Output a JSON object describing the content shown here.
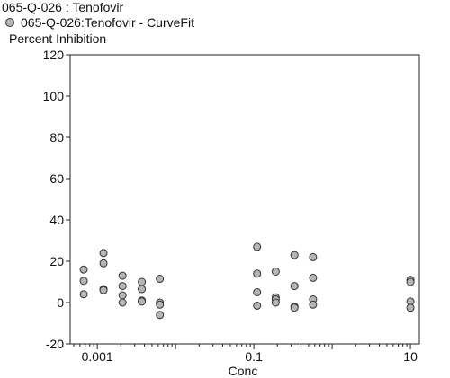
{
  "chart_data": {
    "type": "scatter",
    "title": "065-Q-026  : Tenofovir",
    "legend": [
      {
        "name": "065-Q-026:Tenofovir - CurveFit",
        "marker": "circle",
        "color": "#b5b5b5"
      }
    ],
    "ylabel": "Percent  Inhibition",
    "xlabel": "Conc",
    "x_scale": "log",
    "xlim": [
      0.00045,
      13
    ],
    "ylim": [
      -20,
      120
    ],
    "y_ticks": [
      -20,
      0,
      20,
      40,
      60,
      80,
      100,
      120
    ],
    "x_ticks": [
      {
        "value": 0.001,
        "label": "0.001"
      },
      {
        "value": 0.1,
        "label": "0.1"
      },
      {
        "value": 10,
        "label": "10"
      }
    ],
    "grid": false,
    "series": [
      {
        "name": "065-Q-026:Tenofovir - CurveFit",
        "color": "#b5b5b5",
        "points": [
          {
            "x": 0.00067,
            "y": 16
          },
          {
            "x": 0.00067,
            "y": 10.5
          },
          {
            "x": 0.00067,
            "y": 4
          },
          {
            "x": 0.0012,
            "y": 24
          },
          {
            "x": 0.0012,
            "y": 19
          },
          {
            "x": 0.0012,
            "y": 6.5
          },
          {
            "x": 0.0012,
            "y": 6
          },
          {
            "x": 0.0021,
            "y": 13
          },
          {
            "x": 0.0021,
            "y": 8
          },
          {
            "x": 0.0021,
            "y": 3.5
          },
          {
            "x": 0.0021,
            "y": 0
          },
          {
            "x": 0.0037,
            "y": 10
          },
          {
            "x": 0.0037,
            "y": 6.5
          },
          {
            "x": 0.0037,
            "y": 1
          },
          {
            "x": 0.0037,
            "y": 0.5
          },
          {
            "x": 0.0063,
            "y": 11.5
          },
          {
            "x": 0.0063,
            "y": 0
          },
          {
            "x": 0.0063,
            "y": -1
          },
          {
            "x": 0.0063,
            "y": -6
          },
          {
            "x": 0.11,
            "y": 27
          },
          {
            "x": 0.11,
            "y": 14
          },
          {
            "x": 0.11,
            "y": 5
          },
          {
            "x": 0.11,
            "y": -1.5
          },
          {
            "x": 0.19,
            "y": 15
          },
          {
            "x": 0.19,
            "y": 2.5
          },
          {
            "x": 0.19,
            "y": 1.5
          },
          {
            "x": 0.19,
            "y": 0
          },
          {
            "x": 0.33,
            "y": 23
          },
          {
            "x": 0.33,
            "y": 8
          },
          {
            "x": 0.33,
            "y": -2
          },
          {
            "x": 0.33,
            "y": -2.5
          },
          {
            "x": 0.57,
            "y": 22
          },
          {
            "x": 0.57,
            "y": 12
          },
          {
            "x": 0.57,
            "y": 1.5
          },
          {
            "x": 0.57,
            "y": -1
          },
          {
            "x": 10,
            "y": 11
          },
          {
            "x": 10,
            "y": 10
          },
          {
            "x": 10,
            "y": 0.5
          },
          {
            "x": 10,
            "y": -2.5
          }
        ]
      }
    ]
  }
}
